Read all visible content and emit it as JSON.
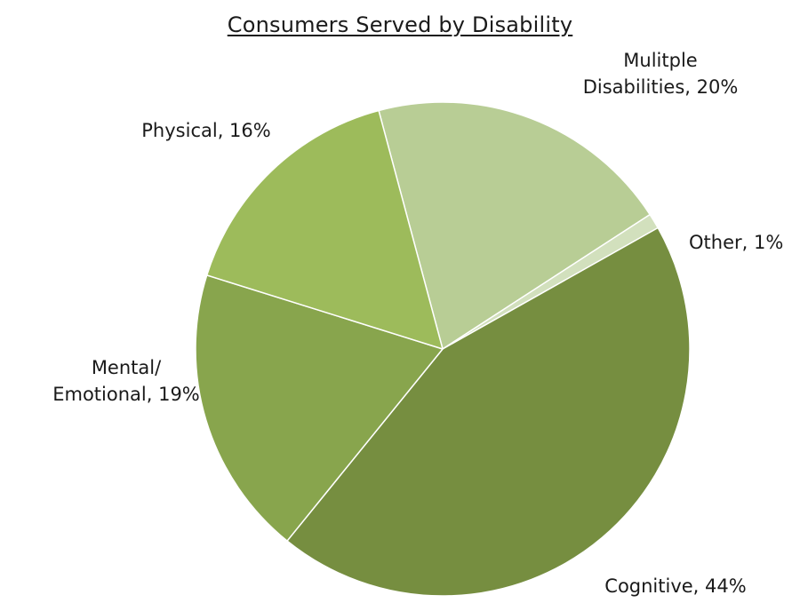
{
  "chart_data": {
    "type": "pie",
    "title": "Consumers Served by Disability",
    "slices": [
      {
        "label": "Mulitple Disabilities, 20%",
        "lines": [
          "Mulitple",
          "Disabilities, 20%"
        ],
        "value": 20,
        "color": "#b8cd95"
      },
      {
        "label": "Other, 1%",
        "lines": [
          "Other, 1%"
        ],
        "value": 1,
        "color": "#d2e0bd"
      },
      {
        "label": "Cognitive, 44%",
        "lines": [
          "Cognitive, 44%"
        ],
        "value": 44,
        "color": "#768e40"
      },
      {
        "label": "Mental/ Emotional, 19%",
        "lines": [
          "Mental/",
          "Emotional, 19%"
        ],
        "value": 19,
        "color": "#88a54d"
      },
      {
        "label": "Physical, 16%",
        "lines": [
          "Physical, 16%"
        ],
        "value": 16,
        "color": "#9dbb5b"
      }
    ]
  }
}
